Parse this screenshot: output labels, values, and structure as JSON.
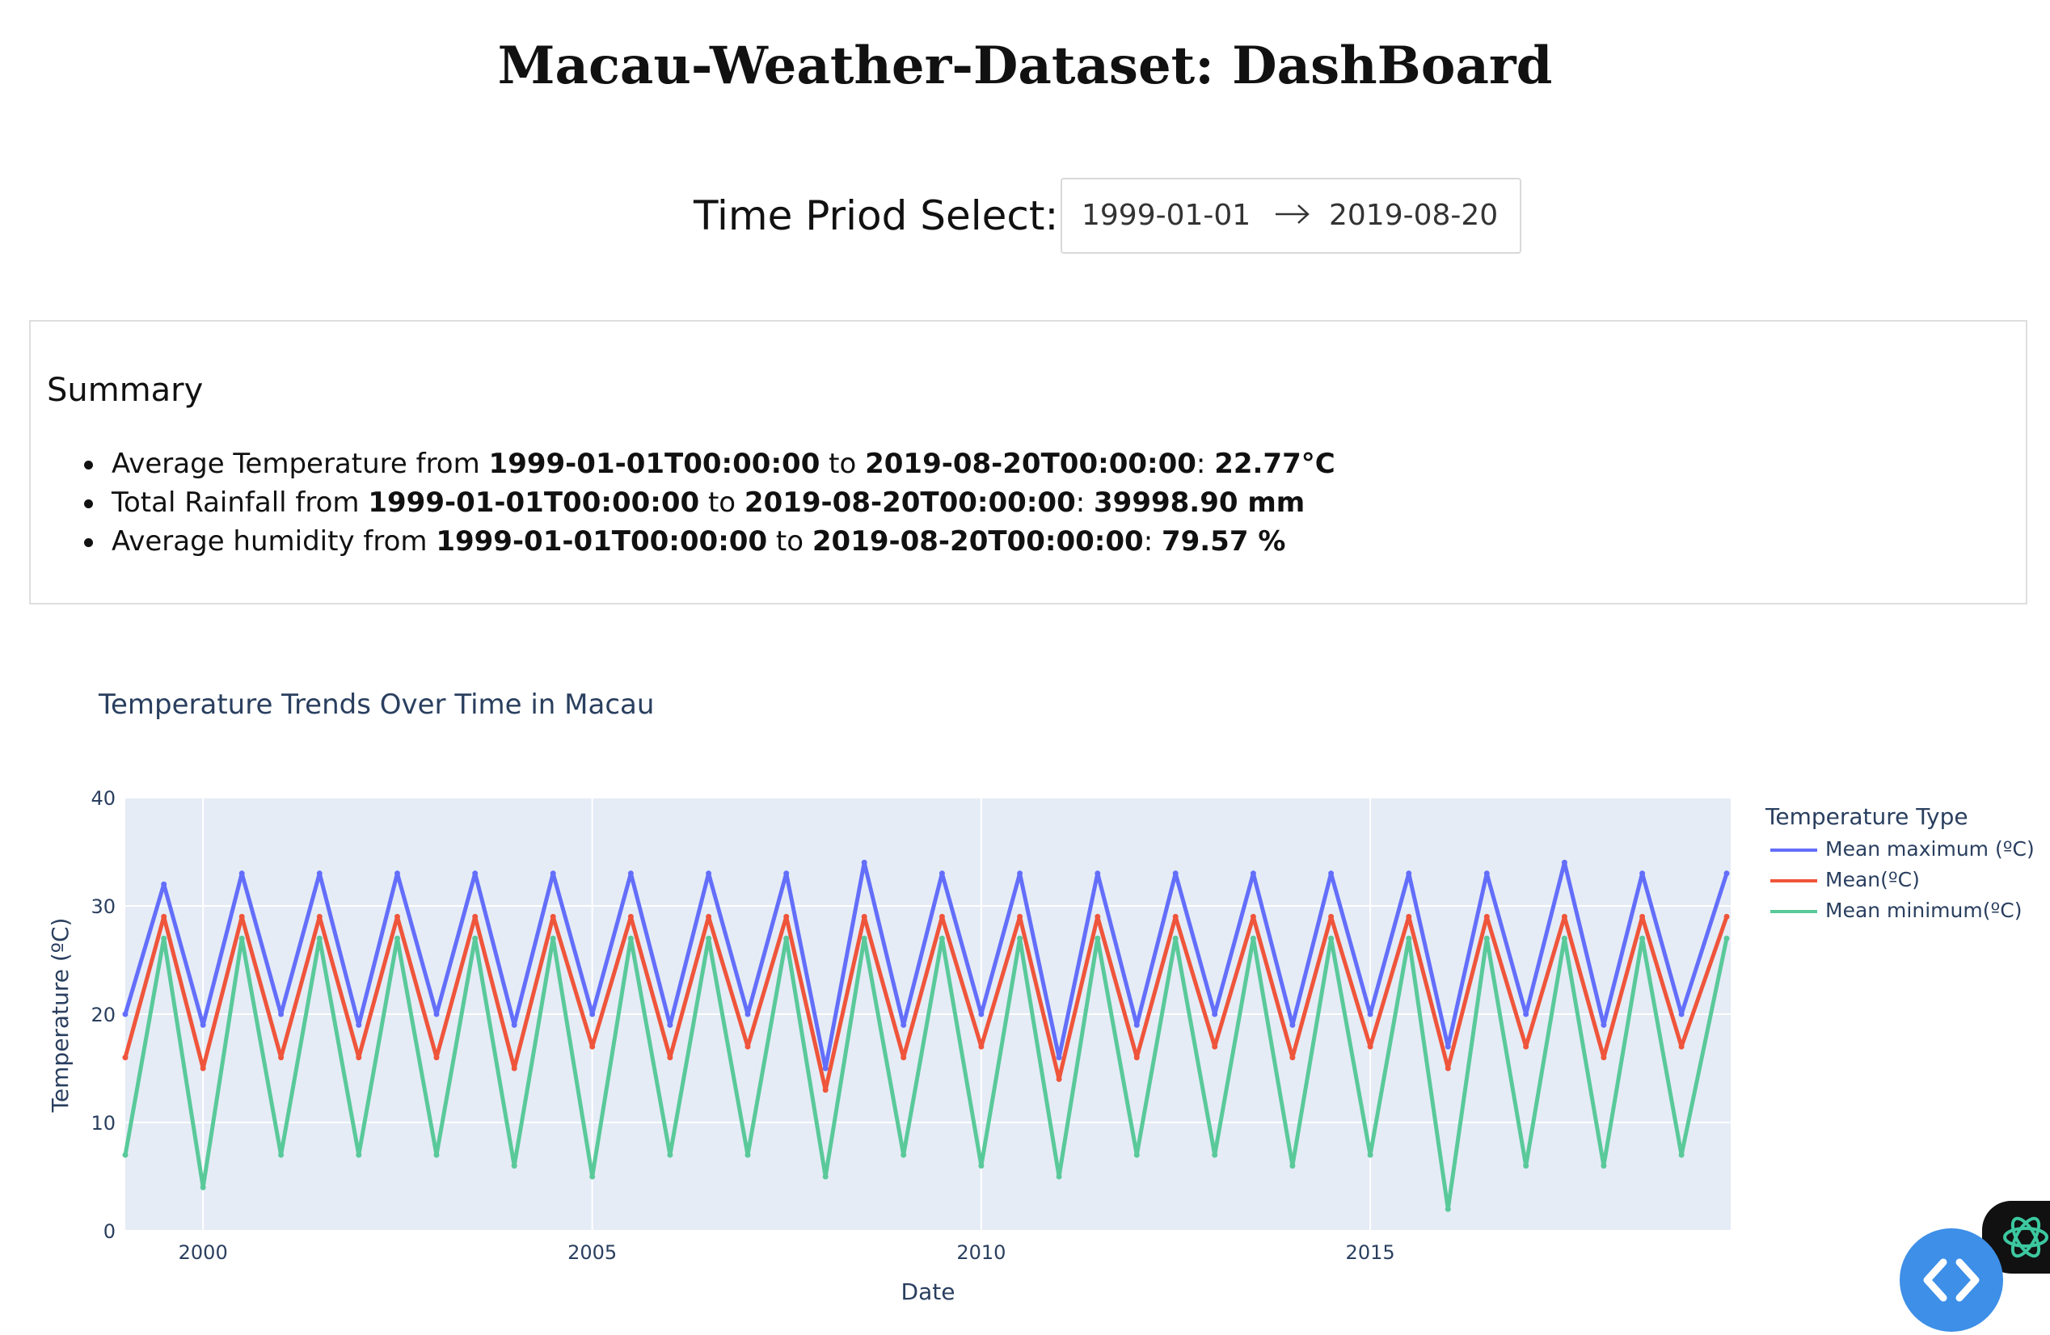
{
  "header": {
    "title": "Macau-Weather-Dataset: DashBoard"
  },
  "period": {
    "label": "Time Priod Select:",
    "start": "1999-01-01",
    "end": "2019-08-20"
  },
  "summary": {
    "title": "Summary",
    "items": [
      {
        "prefix": "Average Temperature from ",
        "start": "1999-01-01T00:00:00",
        "mid": " to ",
        "end": "2019-08-20T00:00:00",
        "sep": ": ",
        "value": "22.77°C"
      },
      {
        "prefix": "Total Rainfall from ",
        "start": "1999-01-01T00:00:00",
        "mid": " to ",
        "end": "2019-08-20T00:00:00",
        "sep": ": ",
        "value": "39998.90 mm"
      },
      {
        "prefix": "Average humidity from ",
        "start": "1999-01-01T00:00:00",
        "mid": " to ",
        "end": "2019-08-20T00:00:00",
        "sep": ": ",
        "value": "79.57 %"
      }
    ]
  },
  "chart_data": {
    "type": "line",
    "title": "Temperature Trends Over Time in Macau",
    "xlabel": "Date",
    "ylabel": "Temperature (ºC)",
    "xlim": [
      "1999-01-01",
      "2019-08-20"
    ],
    "ylim": [
      0,
      40
    ],
    "x_ticks": [
      "2000",
      "2005",
      "2010",
      "2015"
    ],
    "y_ticks": [
      "0",
      "10",
      "20",
      "30",
      "40"
    ],
    "grid": true,
    "plot_bg": "#e5ecf6",
    "legend_title": "Temperature Type",
    "legend_position": "right",
    "series": [
      {
        "name": "Mean maximum (ºC)",
        "color": "#636efa",
        "x": [
          "1999-01",
          "1999-07",
          "2000-01",
          "2000-07",
          "2001-01",
          "2001-07",
          "2002-01",
          "2002-07",
          "2003-01",
          "2003-07",
          "2004-01",
          "2004-07",
          "2005-01",
          "2005-07",
          "2006-01",
          "2006-07",
          "2007-01",
          "2007-07",
          "2008-01",
          "2008-07",
          "2009-01",
          "2009-07",
          "2010-01",
          "2010-07",
          "2011-01",
          "2011-07",
          "2012-01",
          "2012-07",
          "2013-01",
          "2013-07",
          "2014-01",
          "2014-07",
          "2015-01",
          "2015-07",
          "2016-01",
          "2016-07",
          "2017-01",
          "2017-07",
          "2018-01",
          "2018-07",
          "2019-01",
          "2019-08"
        ],
        "values": [
          20,
          32,
          19,
          33,
          20,
          33,
          19,
          33,
          20,
          33,
          19,
          33,
          20,
          33,
          19,
          33,
          20,
          33,
          15,
          34,
          19,
          33,
          20,
          33,
          16,
          33,
          19,
          33,
          20,
          33,
          19,
          33,
          20,
          33,
          17,
          33,
          20,
          34,
          19,
          33,
          20,
          33
        ]
      },
      {
        "name": "Mean(ºC)",
        "color": "#ef553b",
        "x": [
          "1999-01",
          "1999-07",
          "2000-01",
          "2000-07",
          "2001-01",
          "2001-07",
          "2002-01",
          "2002-07",
          "2003-01",
          "2003-07",
          "2004-01",
          "2004-07",
          "2005-01",
          "2005-07",
          "2006-01",
          "2006-07",
          "2007-01",
          "2007-07",
          "2008-01",
          "2008-07",
          "2009-01",
          "2009-07",
          "2010-01",
          "2010-07",
          "2011-01",
          "2011-07",
          "2012-01",
          "2012-07",
          "2013-01",
          "2013-07",
          "2014-01",
          "2014-07",
          "2015-01",
          "2015-07",
          "2016-01",
          "2016-07",
          "2017-01",
          "2017-07",
          "2018-01",
          "2018-07",
          "2019-01",
          "2019-08"
        ],
        "values": [
          16,
          29,
          15,
          29,
          16,
          29,
          16,
          29,
          16,
          29,
          15,
          29,
          17,
          29,
          16,
          29,
          17,
          29,
          13,
          29,
          16,
          29,
          17,
          29,
          14,
          29,
          16,
          29,
          17,
          29,
          16,
          29,
          17,
          29,
          15,
          29,
          17,
          29,
          16,
          29,
          17,
          29
        ]
      },
      {
        "name": "Mean minimum(ºC)",
        "color": "#5ac99a",
        "x": [
          "1999-01",
          "1999-07",
          "2000-01",
          "2000-07",
          "2001-01",
          "2001-07",
          "2002-01",
          "2002-07",
          "2003-01",
          "2003-07",
          "2004-01",
          "2004-07",
          "2005-01",
          "2005-07",
          "2006-01",
          "2006-07",
          "2007-01",
          "2007-07",
          "2008-01",
          "2008-07",
          "2009-01",
          "2009-07",
          "2010-01",
          "2010-07",
          "2011-01",
          "2011-07",
          "2012-01",
          "2012-07",
          "2013-01",
          "2013-07",
          "2014-01",
          "2014-07",
          "2015-01",
          "2015-07",
          "2016-01",
          "2016-07",
          "2017-01",
          "2017-07",
          "2018-01",
          "2018-07",
          "2019-01",
          "2019-08"
        ],
        "values": [
          7,
          27,
          4,
          27,
          7,
          27,
          7,
          27,
          7,
          27,
          6,
          27,
          5,
          27,
          7,
          27,
          7,
          27,
          5,
          27,
          7,
          27,
          6,
          27,
          5,
          27,
          7,
          27,
          7,
          27,
          6,
          27,
          7,
          27,
          2,
          27,
          6,
          27,
          6,
          27,
          7,
          27
        ]
      }
    ]
  },
  "floating": {
    "code_icon": "code-icon",
    "ai_icon": "ai-assistant-icon"
  }
}
